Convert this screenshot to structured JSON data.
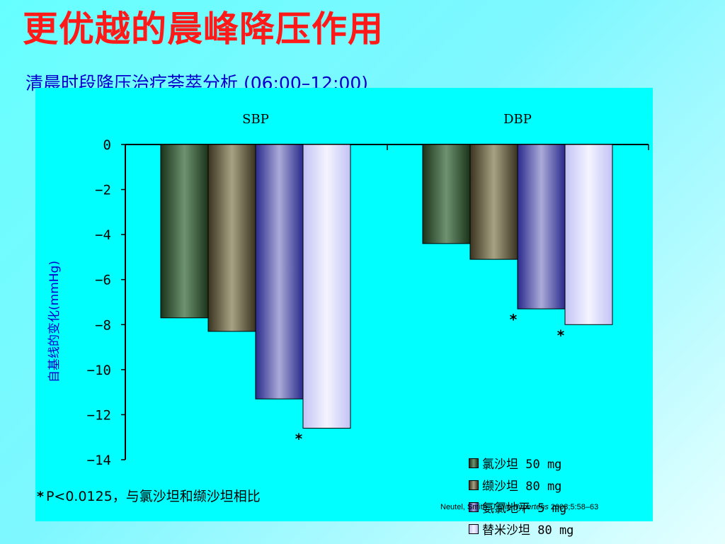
{
  "slide": {
    "title": "更优越的晨峰降压作用",
    "subtitle": "清晨时段降压治疗荟萃分析 (06:00–12:00)",
    "footnote_star": "*",
    "footnote_text": "P<0.0125，与氯沙坦和缬沙坦相比",
    "citation_authors": "Neutel, Smith.",
    "citation_journal": "J Clin Hypertens",
    "citation_ref": "2003;5:58–63"
  },
  "chart_data": {
    "type": "bar",
    "categories": [
      "SBP",
      "DBP"
    ],
    "ylabel": "自基线的变化(mmHg)",
    "ylim": [
      -14,
      0
    ],
    "yticks": [
      "0",
      "−2",
      "−4",
      "−6",
      "−8",
      "−10",
      "−12",
      "−14"
    ],
    "ytick_values": [
      0,
      -2,
      -4,
      -6,
      -8,
      -10,
      -12,
      -14
    ],
    "legend_position": "lower-right",
    "grid": false,
    "series": [
      {
        "name": "氯沙坦 50 mg",
        "values": [
          -7.7,
          -4.4
        ],
        "color": "#3a5a3a",
        "significant": [
          false,
          false
        ]
      },
      {
        "name": "缬沙坦 80 mg",
        "values": [
          -8.3,
          -5.1
        ],
        "color": "#6b6245",
        "significant": [
          false,
          false
        ]
      },
      {
        "name": "氨氯地平 5 mg",
        "values": [
          -11.3,
          -7.3
        ],
        "color": "#4040a0",
        "significant": [
          false,
          true
        ]
      },
      {
        "name": "替米沙坦 80 mg",
        "values": [
          -12.6,
          -8.0
        ],
        "color": "#d8d8ff",
        "significant": [
          true,
          true
        ]
      }
    ],
    "significance_marker": "*"
  }
}
